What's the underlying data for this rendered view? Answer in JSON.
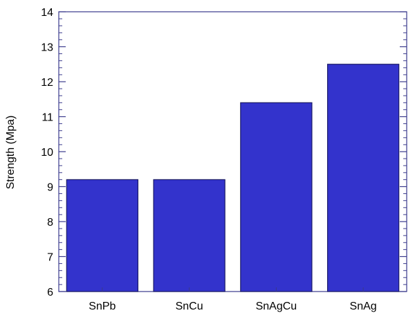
{
  "chart_data": {
    "type": "bar",
    "categories": [
      "SnPb",
      "SnCu",
      "SnAgCu",
      "SnAg"
    ],
    "values": [
      9.2,
      9.2,
      11.4,
      12.5
    ],
    "title": "",
    "xlabel": "",
    "ylabel": "Strength (Mpa)",
    "ylim": [
      6,
      14
    ],
    "yticks": [
      6,
      7,
      8,
      9,
      10,
      11,
      12,
      13,
      14
    ],
    "minor_ticks_per_major": 5,
    "grid": false,
    "legend": "none",
    "colors": {
      "bar_fill": "#3333cc",
      "bar_stroke": "#1a1a66",
      "axis": "#3a3a8c"
    }
  }
}
